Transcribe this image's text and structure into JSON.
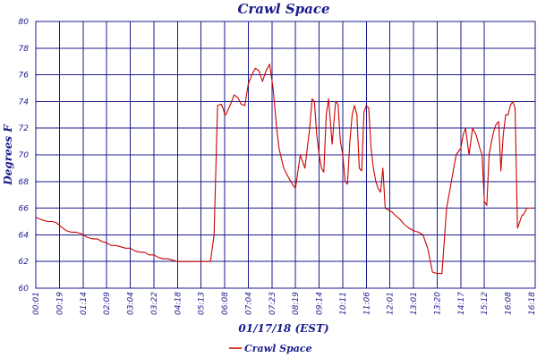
{
  "chart_data": {
    "type": "line",
    "title": "Crawl Space",
    "xlabel": "01/17/18 (EST)",
    "ylabel": "Degrees F",
    "ylim": [
      60,
      80
    ],
    "y_ticks": [
      60,
      62,
      64,
      66,
      68,
      70,
      72,
      74,
      76,
      78,
      80
    ],
    "x_tick_labels": [
      "00:01",
      "00:19",
      "01:14",
      "02:09",
      "03:04",
      "03:22",
      "04:18",
      "05:13",
      "06:08",
      "07:04",
      "07:23",
      "08:19",
      "09:14",
      "10:11",
      "11:06",
      "12:01",
      "13:01",
      "13:20",
      "14:17",
      "15:12",
      "16:08",
      "16:18"
    ],
    "grid": true,
    "legend_position": "bottom-left",
    "line_color": "#cc0000",
    "series": [
      {
        "name": "Crawl Space",
        "x": [
          0,
          0.3,
          0.5,
          0.7,
          0.9,
          1.0,
          1.15,
          1.3,
          1.5,
          1.7,
          1.9,
          2.0,
          2.2,
          2.4,
          2.6,
          2.8,
          3.0,
          3.2,
          3.4,
          3.6,
          3.8,
          4.0,
          4.2,
          4.4,
          4.6,
          4.8,
          5.0,
          5.2,
          5.4,
          5.6,
          5.8,
          6.0,
          6.2,
          6.4,
          6.6,
          6.8,
          7.0,
          7.2,
          7.4,
          7.55,
          7.7,
          7.85,
          7.95,
          8.0,
          8.05,
          8.1,
          8.25,
          8.4,
          8.55,
          8.7,
          8.85,
          9.0,
          9.15,
          9.3,
          9.45,
          9.6,
          9.75,
          9.9,
          10.05,
          10.2,
          10.3,
          10.5,
          10.7,
          10.9,
          11.0,
          11.2,
          11.4,
          11.6,
          11.7,
          11.8,
          11.9,
          12.0,
          12.1,
          12.2,
          12.3,
          12.4,
          12.55,
          12.7,
          12.8,
          12.9,
          13.0,
          13.1,
          13.2,
          13.3,
          13.4,
          13.5,
          13.6,
          13.7,
          13.8,
          13.9,
          14.0,
          14.1,
          14.2,
          14.3,
          14.4,
          14.5,
          14.6,
          14.7,
          14.8,
          14.9,
          15.0,
          15.1,
          15.2,
          15.4,
          15.6,
          15.8,
          16.0,
          16.2,
          16.4,
          16.6,
          16.8,
          17.0,
          17.2,
          17.4,
          17.6,
          17.8,
          18.0,
          18.1,
          18.2,
          18.35,
          18.5,
          18.65,
          18.8,
          18.9,
          19.0,
          19.1,
          19.2,
          19.3,
          19.4,
          19.5,
          19.6,
          19.7,
          19.8,
          19.9,
          20.0,
          20.1,
          20.2,
          20.3,
          20.4,
          20.5,
          20.6,
          20.65,
          20.8,
          21.0
        ],
        "values": [
          65.3,
          65.1,
          65.0,
          65.0,
          64.9,
          64.7,
          64.5,
          64.3,
          64.2,
          64.2,
          64.1,
          64.0,
          63.8,
          63.7,
          63.7,
          63.5,
          63.4,
          63.2,
          63.2,
          63.1,
          63.0,
          63.0,
          62.8,
          62.7,
          62.7,
          62.5,
          62.5,
          62.3,
          62.2,
          62.2,
          62.1,
          62.0,
          62.0,
          62.0,
          62.0,
          62.0,
          62.0,
          62.0,
          62.0,
          64.0,
          73.7,
          73.8,
          73.4,
          73.0,
          73.0,
          73.2,
          73.8,
          74.5,
          74.3,
          73.8,
          73.7,
          75.3,
          76.0,
          76.5,
          76.3,
          75.5,
          76.3,
          76.8,
          75.0,
          72.0,
          70.5,
          69.0,
          68.3,
          67.7,
          67.5,
          70.0,
          69.0,
          72.0,
          74.2,
          74.0,
          71.5,
          70.0,
          69.0,
          68.7,
          73.0,
          74.2,
          70.8,
          74.0,
          73.8,
          71.0,
          70.0,
          68.0,
          67.8,
          71.0,
          73.0,
          73.7,
          73.0,
          69.0,
          68.8,
          73.2,
          73.7,
          73.5,
          70.5,
          69.0,
          68.0,
          67.5,
          67.2,
          69.0,
          66.0,
          65.9,
          65.8,
          65.7,
          65.5,
          65.2,
          64.8,
          64.5,
          64.3,
          64.2,
          64.0,
          63.0,
          61.2,
          61.1,
          61.1,
          66.0,
          68.0,
          70.0,
          70.5,
          71.5,
          72.0,
          70.0,
          72.0,
          71.5,
          70.5,
          70.0,
          66.5,
          66.2,
          70.0,
          71.0,
          71.8,
          72.3,
          72.5,
          68.8,
          71.5,
          73.0,
          73.0,
          73.7,
          74.0,
          73.5,
          64.5,
          65.0,
          65.5,
          65.5,
          66.0,
          66.0
        ]
      }
    ]
  }
}
